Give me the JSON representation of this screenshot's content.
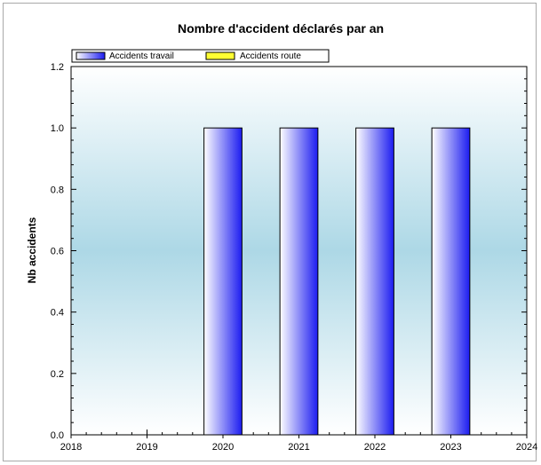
{
  "chart_data": {
    "type": "bar",
    "title": "Nombre d'accident déclarés par an",
    "xlabel": "",
    "ylabel": "Nb accidents",
    "categories": [
      "2020",
      "2021",
      "2022",
      "2023"
    ],
    "x_ticks": [
      "2018",
      "2019",
      "2020",
      "2021",
      "2022",
      "2023",
      "2024"
    ],
    "y_ticks": [
      "0.0",
      "0.2",
      "0.4",
      "0.6",
      "0.8",
      "1.0",
      "1.2"
    ],
    "xlim": [
      2018,
      2024
    ],
    "ylim": [
      0,
      1.2
    ],
    "series": [
      {
        "name": "Accidents travail",
        "x": [
          2020,
          2021,
          2022,
          2023
        ],
        "values": [
          1,
          1,
          1,
          1
        ],
        "color": "#1c1cf0"
      },
      {
        "name": "Accidents route",
        "x": [
          2020,
          2021,
          2022,
          2023
        ],
        "values": [
          0,
          0,
          0,
          0
        ],
        "color": "#ffff33"
      }
    ],
    "legend_position": "top",
    "grid": false
  }
}
